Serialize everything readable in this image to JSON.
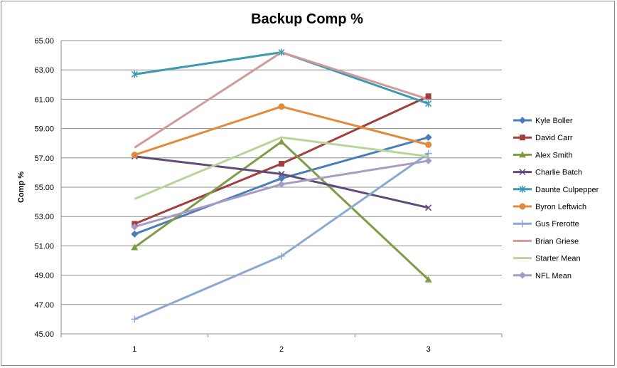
{
  "chart_data": {
    "type": "line",
    "title": "Backup Comp %",
    "xlabel": "",
    "ylabel": "Comp %",
    "categories": [
      "1",
      "2",
      "3"
    ],
    "ylim": [
      45,
      65
    ],
    "yticks": [
      "45.00",
      "47.00",
      "49.00",
      "51.00",
      "53.00",
      "55.00",
      "57.00",
      "59.00",
      "61.00",
      "63.00",
      "65.00"
    ],
    "grid": "horizontal",
    "legend": "right",
    "series": [
      {
        "name": "Kyle Boller",
        "color": "#4A7EBB",
        "marker": "diamond",
        "values": [
          51.8,
          55.6,
          58.4
        ]
      },
      {
        "name": "David Carr",
        "color": "#A0403D",
        "marker": "square",
        "values": [
          52.5,
          56.6,
          61.2
        ]
      },
      {
        "name": "Alex Smith",
        "color": "#7E9B45",
        "marker": "triangle",
        "values": [
          50.9,
          58.1,
          48.7
        ]
      },
      {
        "name": "Charlie Batch",
        "color": "#5F4B7A",
        "marker": "x",
        "values": [
          57.1,
          55.9,
          53.6
        ]
      },
      {
        "name": "Daunte Culpepper",
        "color": "#3C9BB0",
        "marker": "star",
        "values": [
          62.7,
          64.2,
          60.7
        ]
      },
      {
        "name": "Byron Leftwich",
        "color": "#E08A3C",
        "marker": "circle",
        "values": [
          57.2,
          60.5,
          57.9
        ]
      },
      {
        "name": "Gus Frerotte",
        "color": "#8DA8CF",
        "marker": "plus",
        "values": [
          46.0,
          50.3,
          57.3
        ]
      },
      {
        "name": "Brian Griese",
        "color": "#D39A9A",
        "marker": "none",
        "values": [
          57.7,
          64.2,
          61.0
        ]
      },
      {
        "name": "Starter Mean",
        "color": "#B8D49A",
        "marker": "none",
        "values": [
          54.2,
          58.4,
          57.1
        ]
      },
      {
        "name": "NFL Mean",
        "color": "#A89BC4",
        "marker": "diamond",
        "values": [
          52.3,
          55.2,
          56.8
        ]
      }
    ]
  }
}
